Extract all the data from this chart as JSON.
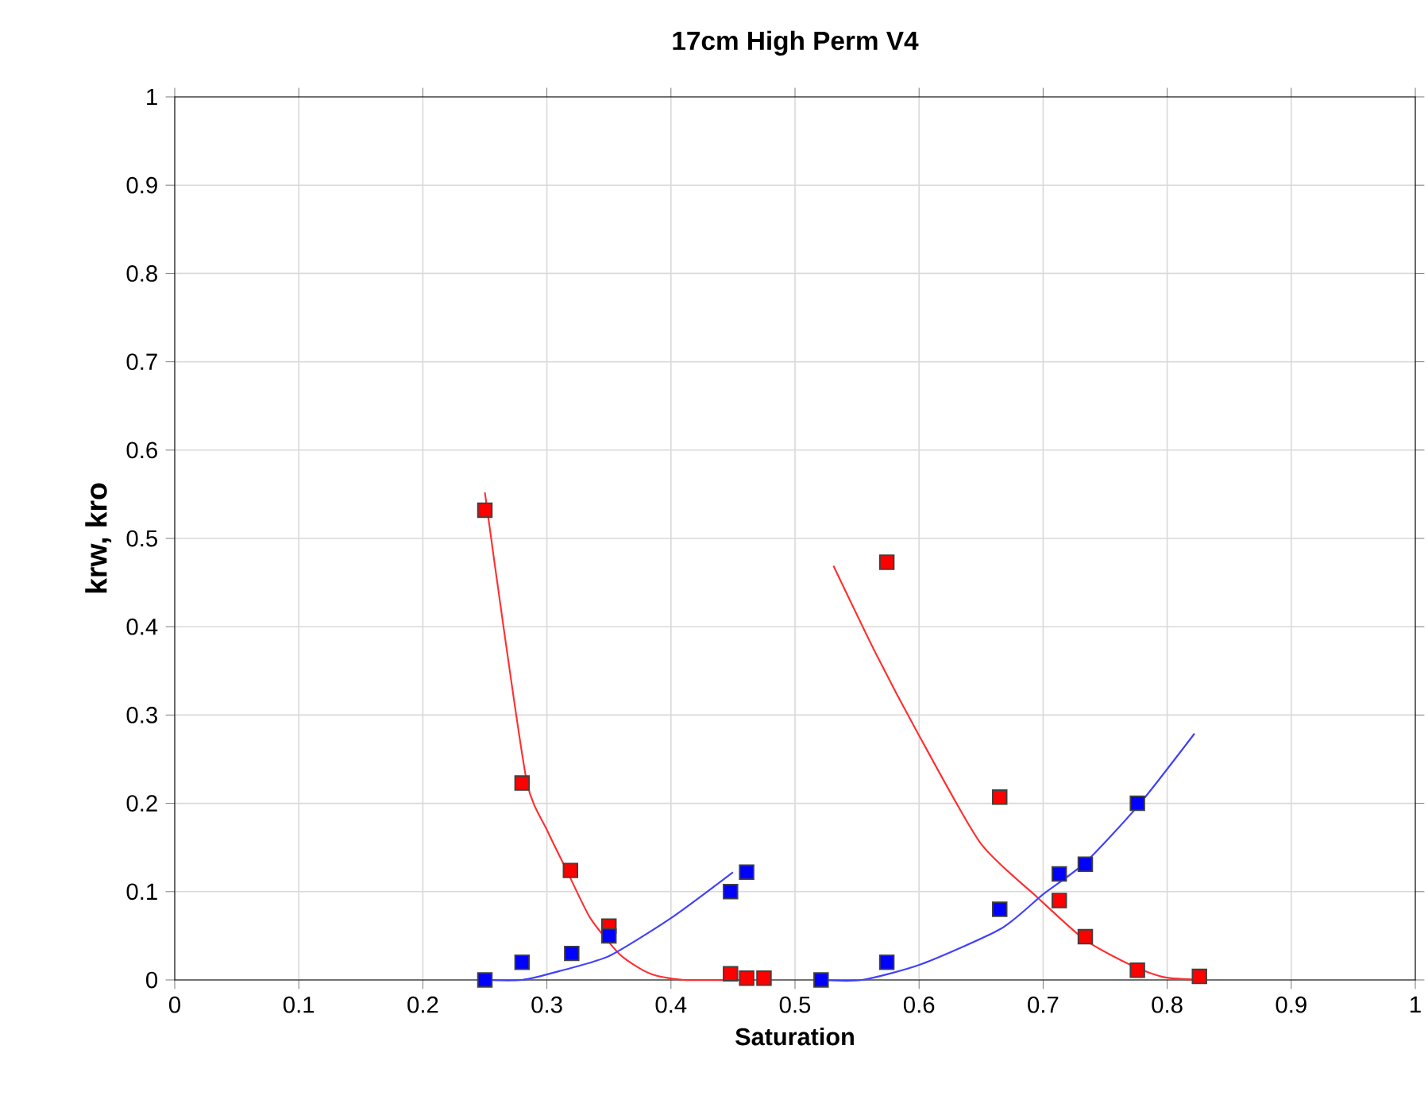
{
  "chart_data": {
    "type": "scatter",
    "title": "17cm High Perm V4",
    "xlabel": "Saturation",
    "ylabel": "krw, kro",
    "xlim": [
      0,
      1
    ],
    "ylim": [
      0,
      1
    ],
    "xticks": [
      0,
      0.1,
      0.2,
      0.3,
      0.4,
      0.5,
      0.6,
      0.7,
      0.8,
      0.9,
      1
    ],
    "yticks": [
      0,
      0.1,
      0.2,
      0.3,
      0.4,
      0.5,
      0.6,
      0.7,
      0.8,
      0.9,
      1
    ],
    "grid": true,
    "series": [
      {
        "marker": "square",
        "color": "#ff0000",
        "x": [
          0.25,
          0.28,
          0.319,
          0.35,
          0.448,
          0.461,
          0.475,
          0.574,
          0.665,
          0.713,
          0.734,
          0.776,
          0.826
        ],
        "values": [
          0.532,
          0.223,
          0.124,
          0.061,
          0.007,
          0.002,
          0.002,
          0.473,
          0.207,
          0.09,
          0.049,
          0.011,
          0.004
        ]
      },
      {
        "marker": "square",
        "color": "#0000ff",
        "x": [
          0.25,
          0.28,
          0.32,
          0.35,
          0.448,
          0.461,
          0.521,
          0.574,
          0.665,
          0.713,
          0.734,
          0.776
        ],
        "values": [
          0,
          0.02,
          0.03,
          0.05,
          0.1,
          0.122,
          0,
          0.02,
          0.08,
          0.12,
          0.131,
          0.2
        ]
      },
      {
        "type": "line",
        "marker": "none",
        "color": "#ff3030",
        "x": [
          0.25,
          0.265,
          0.284,
          0.3,
          0.316,
          0.335,
          0.358,
          0.375,
          0.388,
          0.41,
          0.448
        ],
        "values": [
          0.552,
          0.4,
          0.223,
          0.17,
          0.124,
          0.07,
          0.03,
          0.013,
          0.005,
          0,
          0
        ]
      },
      {
        "type": "line",
        "marker": "none",
        "color": "#4040ff",
        "x": [
          0.25,
          0.28,
          0.31,
          0.35,
          0.4,
          0.45
        ],
        "values": [
          0,
          0,
          0.01,
          0.027,
          0.07,
          0.122
        ]
      },
      {
        "type": "line",
        "marker": "none",
        "color": "#ff3030",
        "x": [
          0.531,
          0.565,
          0.598,
          0.649,
          0.695,
          0.734,
          0.772,
          0.798,
          0.828
        ],
        "values": [
          0.469,
          0.37,
          0.282,
          0.156,
          0.094,
          0.045,
          0.016,
          0.003,
          0
        ]
      },
      {
        "type": "line",
        "marker": "none",
        "color": "#4040ff",
        "x": [
          0.521,
          0.554,
          0.602,
          0.666,
          0.7,
          0.734,
          0.777,
          0.822
        ],
        "values": [
          0,
          0,
          0.018,
          0.058,
          0.097,
          0.133,
          0.198,
          0.279
        ]
      }
    ]
  }
}
